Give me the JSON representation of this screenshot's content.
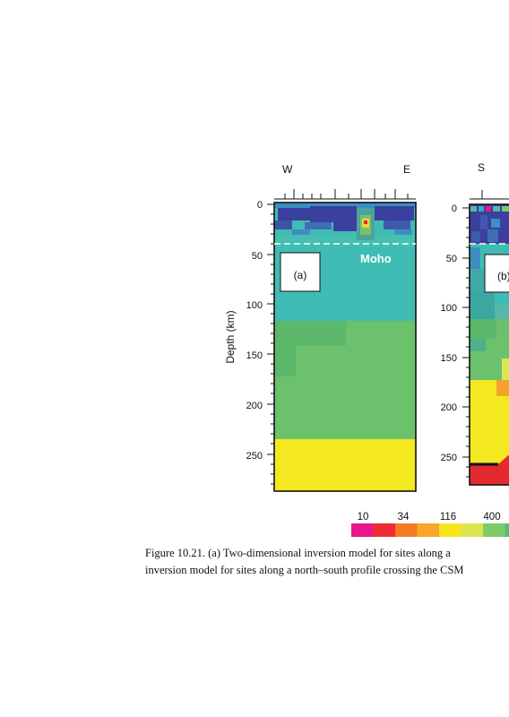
{
  "figure": {
    "panel_a": {
      "label": "(a)",
      "left_direction": "W",
      "right_direction": "E",
      "moho_label": "Moho",
      "y_axis_label": "Depth (km)",
      "y_ticks": [
        "0",
        "50",
        "100",
        "150",
        "200",
        "250"
      ]
    },
    "panel_b": {
      "label": "(b)",
      "left_direction": "S",
      "y_ticks": [
        "0",
        "50",
        "100",
        "150",
        "200",
        "250"
      ]
    },
    "colorbar": {
      "tick_labels": [
        "10",
        "34",
        "116",
        "400"
      ],
      "colors": [
        "#e9168c",
        "#ee2c35",
        "#f47a24",
        "#f9a62a",
        "#f7e61b",
        "#dbe64e",
        "#7ecb6a",
        "#5bb873"
      ]
    },
    "colors": {
      "deep_blue": "#3b3f9e",
      "teal": "#3fbdb4",
      "green": "#6cc16d",
      "dark_green": "#5cb86a",
      "yellow": "#f4e821",
      "red": "#e42a2f"
    }
  },
  "caption": {
    "line1": "Figure 10.21. (a) Two-dimensional inversion model for sites along a",
    "line2": "inversion model for sites along a north–south profile crossing the CSM"
  }
}
